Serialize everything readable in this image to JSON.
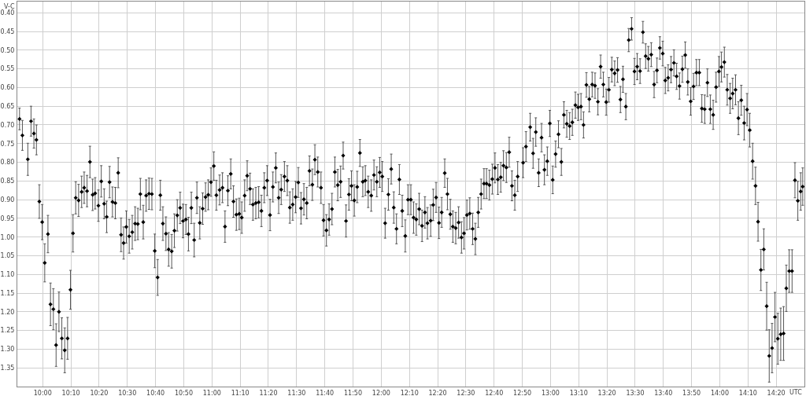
{
  "chart_data": {
    "type": "scatter",
    "xlabel": "UTC",
    "ylabel": "V-C",
    "xlim": [
      9.85,
      14.5
    ],
    "ylim": [
      1.4,
      0.37
    ],
    "xticks": [
      {
        "value": 10,
        "label": "10:00"
      },
      {
        "value": 10.1667,
        "label": "10:10"
      },
      {
        "value": 10.3333,
        "label": "10:20"
      },
      {
        "value": 10.5,
        "label": "10:30"
      },
      {
        "value": 10.6667,
        "label": "10:40"
      },
      {
        "value": 10.8333,
        "label": "10:50"
      },
      {
        "value": 11,
        "label": "11:00"
      },
      {
        "value": 11.1667,
        "label": "11:10"
      },
      {
        "value": 11.3333,
        "label": "11:20"
      },
      {
        "value": 11.5,
        "label": "11:30"
      },
      {
        "value": 11.6667,
        "label": "11:40"
      },
      {
        "value": 11.8333,
        "label": "11:50"
      },
      {
        "value": 12,
        "label": "12:00"
      },
      {
        "value": 12.1667,
        "label": "12:10"
      },
      {
        "value": 12.3333,
        "label": "12:20"
      },
      {
        "value": 12.5,
        "label": "12:30"
      },
      {
        "value": 12.6667,
        "label": "12:40"
      },
      {
        "value": 12.8333,
        "label": "12:50"
      },
      {
        "value": 13,
        "label": "13:00"
      },
      {
        "value": 13.1667,
        "label": "13:10"
      },
      {
        "value": 13.3333,
        "label": "13:20"
      },
      {
        "value": 13.5,
        "label": "13:30"
      },
      {
        "value": 13.6667,
        "label": "13:40"
      },
      {
        "value": 13.8333,
        "label": "13:50"
      },
      {
        "value": 14,
        "label": "14:00"
      },
      {
        "value": 14.1667,
        "label": "14:10"
      },
      {
        "value": 14.3333,
        "label": "14:20"
      }
    ],
    "yticks": [
      {
        "value": 0.4,
        "label": "0.40"
      },
      {
        "value": 0.45,
        "label": "0.45"
      },
      {
        "value": 0.5,
        "label": "0.50"
      },
      {
        "value": 0.55,
        "label": "0.55"
      },
      {
        "value": 0.6,
        "label": "0.60"
      },
      {
        "value": 0.65,
        "label": "0.65"
      },
      {
        "value": 0.7,
        "label": "0.70"
      },
      {
        "value": 0.75,
        "label": "0.75"
      },
      {
        "value": 0.8,
        "label": "0.80"
      },
      {
        "value": 0.85,
        "label": "0.85"
      },
      {
        "value": 0.9,
        "label": "0.90"
      },
      {
        "value": 0.95,
        "label": "0.95"
      },
      {
        "value": 1.0,
        "label": "1.00"
      },
      {
        "value": 1.05,
        "label": "1.05"
      },
      {
        "value": 1.1,
        "label": "1.10"
      },
      {
        "value": 1.15,
        "label": "1.15"
      },
      {
        "value": 1.2,
        "label": "1.20"
      },
      {
        "value": 1.25,
        "label": "1.25"
      },
      {
        "value": 1.3,
        "label": "1.30"
      },
      {
        "value": 1.35,
        "label": "1.35"
      }
    ],
    "grid": true,
    "marker": "diamond",
    "series": [
      {
        "color": "#000000",
        "x": [
          9.863,
          9.88,
          9.912,
          9.931,
          9.948,
          9.963,
          9.98,
          9.997,
          10.012,
          10.031,
          10.046,
          10.063,
          10.079,
          10.096,
          10.113,
          10.13,
          10.147,
          10.164,
          10.179,
          10.195,
          10.212,
          10.23,
          10.245,
          10.262,
          10.279,
          10.295,
          10.31,
          10.329,
          10.346,
          10.363,
          10.378,
          10.395,
          10.412,
          10.429,
          10.446,
          10.463,
          10.478,
          10.494,
          10.511,
          10.529,
          10.546,
          10.562,
          10.577,
          10.594,
          10.611,
          10.628,
          10.645,
          10.662,
          10.679,
          10.695,
          10.71,
          10.728,
          10.744,
          10.762,
          10.778,
          10.795,
          10.812,
          10.829,
          10.846,
          10.861,
          10.878,
          10.895,
          10.911,
          10.928,
          10.945,
          10.962,
          10.978,
          10.994,
          11.011,
          11.026,
          11.045,
          11.062,
          11.077,
          11.094,
          11.111,
          11.127,
          11.144,
          11.161,
          11.176,
          11.193,
          11.208,
          11.225,
          11.242,
          11.259,
          11.276,
          11.292,
          11.309,
          11.326,
          11.343,
          11.36,
          11.377,
          11.394,
          11.409,
          11.428,
          11.445,
          11.46,
          11.477,
          11.494,
          11.51,
          11.526,
          11.543,
          11.56,
          11.576,
          11.593,
          11.608,
          11.625,
          11.644,
          11.659,
          11.676,
          11.692,
          11.709,
          11.726,
          11.743,
          11.76,
          11.775,
          11.792,
          11.809,
          11.824,
          11.841,
          11.858,
          11.874,
          11.891,
          11.906,
          11.923,
          11.941,
          11.957,
          11.974,
          11.991,
          12.006,
          12.023,
          12.042,
          12.059,
          12.074,
          12.09,
          12.107,
          12.124,
          12.142,
          12.158,
          12.175,
          12.191,
          12.207,
          12.224,
          12.241,
          12.258,
          12.273,
          12.292,
          12.307,
          12.324,
          12.341,
          12.357,
          12.375,
          12.391,
          12.408,
          12.423,
          12.44,
          12.457,
          12.474,
          12.489,
          12.506,
          12.523,
          12.54,
          12.556,
          12.573,
          12.59,
          12.607,
          12.622,
          12.639,
          12.656,
          12.672,
          12.689,
          12.706,
          12.722,
          12.739,
          12.756,
          12.772,
          12.789,
          12.806,
          12.838,
          12.855,
          12.88,
          12.897,
          12.913,
          12.93,
          12.947,
          12.964,
          12.981,
          12.996,
          13.013,
          13.03,
          13.047,
          13.064,
          13.079,
          13.096,
          13.113,
          13.129,
          13.147,
          13.163,
          13.18,
          13.195,
          13.212,
          13.229,
          13.246,
          13.263,
          13.28,
          13.296,
          13.312,
          13.329,
          13.345,
          13.362,
          13.379,
          13.396,
          13.413,
          13.428,
          13.445,
          13.462,
          13.479,
          13.496,
          13.512,
          13.529,
          13.546,
          13.562,
          13.578,
          13.595,
          13.612,
          13.629,
          13.646,
          13.663,
          13.678,
          13.695,
          13.712,
          13.729,
          13.745,
          13.762,
          13.779,
          13.796,
          13.811,
          13.828,
          13.845,
          13.862,
          13.879,
          13.894,
          13.911,
          13.927,
          13.944,
          13.961,
          13.978,
          13.995,
          14.01,
          14.027,
          14.044,
          14.061,
          14.076,
          14.093,
          14.11,
          14.127,
          14.144,
          14.161,
          14.177,
          14.194,
          14.211,
          14.226,
          14.243,
          14.26,
          14.277,
          14.292,
          14.309,
          14.326,
          14.343,
          14.36,
          14.377,
          14.393,
          14.41,
          14.427,
          14.444,
          14.461,
          14.478,
          14.49
        ],
        "values": [
          0.684,
          0.728,
          0.792,
          0.69,
          0.723,
          0.74,
          0.905,
          0.96,
          1.069,
          0.992,
          1.18,
          1.193,
          1.289,
          1.2,
          1.271,
          1.303,
          1.271,
          1.141,
          0.99,
          0.895,
          0.902,
          0.879,
          0.868,
          0.877,
          0.799,
          0.887,
          0.883,
          0.916,
          0.851,
          0.911,
          0.946,
          0.853,
          0.906,
          0.909,
          0.828,
          0.994,
          1.016,
          0.973,
          0.998,
          0.987,
          0.964,
          0.965,
          0.885,
          0.96,
          0.889,
          0.884,
          0.885,
          1.037,
          1.108,
          0.888,
          0.964,
          0.991,
          1.033,
          1.038,
          0.983,
          0.942,
          0.922,
          0.957,
          0.953,
          0.992,
          0.922,
          1.008,
          0.895,
          0.962,
          0.924,
          0.893,
          0.887,
          0.853,
          0.81,
          0.888,
          0.874,
          0.868,
          0.972,
          0.876,
          0.831,
          0.905,
          0.94,
          0.938,
          0.948,
          0.889,
          0.836,
          0.871,
          0.913,
          0.909,
          0.907,
          0.93,
          0.868,
          0.849,
          0.941,
          0.866,
          0.815,
          0.895,
          0.873,
          0.838,
          0.849,
          0.921,
          0.913,
          0.893,
          0.854,
          0.923,
          0.899,
          0.909,
          0.823,
          0.86,
          0.793,
          0.826,
          0.868,
          0.955,
          0.982,
          0.953,
          0.925,
          0.826,
          0.861,
          0.852,
          0.782,
          0.957,
          0.886,
          0.863,
          0.902,
          0.866,
          0.775,
          0.852,
          0.849,
          0.879,
          0.889,
          0.834,
          0.852,
          0.827,
          0.838,
          0.963,
          0.886,
          0.818,
          0.921,
          0.978,
          0.846,
          0.93,
          0.997,
          0.9,
          0.9,
          0.948,
          0.953,
          0.925,
          0.97,
          0.934,
          0.963,
          0.956,
          0.914,
          0.894,
          0.962,
          0.934,
          0.829,
          0.885,
          0.939,
          0.972,
          0.976,
          0.961,
          1.001,
          0.99,
          0.941,
          0.937,
          0.978,
          1.005,
          0.934,
          0.885,
          0.857,
          0.857,
          0.861,
          0.845,
          0.815,
          0.846,
          0.84,
          0.809,
          0.814,
          0.773,
          0.863,
          0.888,
          0.838,
          0.801,
          0.758,
          0.706,
          0.776,
          0.719,
          0.828,
          0.734,
          0.82,
          0.797,
          0.696,
          0.847,
          0.778,
          0.725,
          0.799,
          0.673,
          0.697,
          0.703,
          0.693,
          0.647,
          0.653,
          0.651,
          0.7,
          0.593,
          0.631,
          0.592,
          0.595,
          0.638,
          0.544,
          0.592,
          0.639,
          0.606,
          0.552,
          0.562,
          0.553,
          0.632,
          0.578,
          0.651,
          0.473,
          0.443,
          0.557,
          0.544,
          0.556,
          0.452,
          0.516,
          0.523,
          0.512,
          0.592,
          0.554,
          0.494,
          0.509,
          0.581,
          0.574,
          0.552,
          0.534,
          0.57,
          0.596,
          0.551,
          0.513,
          0.585,
          0.637,
          0.597,
          0.56,
          0.56,
          0.656,
          0.658,
          0.587,
          0.658,
          0.673,
          0.599,
          0.557,
          0.545,
          0.532,
          0.606,
          0.629,
          0.616,
          0.606,
          0.682,
          0.634,
          0.695,
          0.659,
          0.714,
          0.797,
          0.863,
          0.959,
          1.088,
          1.033,
          1.185,
          1.318,
          1.297,
          1.214,
          1.272,
          1.26,
          1.258,
          1.137,
          1.091,
          1.091,
          0.848,
          0.903,
          0.878,
          0.865
        ],
        "errors": [
          0.029,
          0.04,
          0.043,
          0.04,
          0.039,
          0.04,
          0.045,
          0.047,
          0.051,
          0.05,
          0.057,
          0.055,
          0.057,
          0.053,
          0.055,
          0.06,
          0.056,
          0.052,
          0.05,
          0.043,
          0.043,
          0.042,
          0.042,
          0.042,
          0.042,
          0.042,
          0.042,
          0.042,
          0.042,
          0.04,
          0.042,
          0.042,
          0.04,
          0.042,
          0.04,
          0.045,
          0.043,
          0.043,
          0.045,
          0.045,
          0.045,
          0.042,
          0.042,
          0.045,
          0.042,
          0.042,
          0.042,
          0.045,
          0.048,
          0.04,
          0.045,
          0.045,
          0.045,
          0.045,
          0.045,
          0.042,
          0.042,
          0.045,
          0.04,
          0.045,
          0.042,
          0.045,
          0.042,
          0.043,
          0.042,
          0.038,
          0.04,
          0.038,
          0.038,
          0.04,
          0.04,
          0.04,
          0.042,
          0.04,
          0.04,
          0.042,
          0.042,
          0.042,
          0.042,
          0.042,
          0.04,
          0.042,
          0.042,
          0.042,
          0.042,
          0.042,
          0.04,
          0.04,
          0.042,
          0.04,
          0.04,
          0.042,
          0.04,
          0.04,
          0.04,
          0.042,
          0.042,
          0.042,
          0.04,
          0.042,
          0.042,
          0.042,
          0.04,
          0.042,
          0.04,
          0.04,
          0.042,
          0.042,
          0.042,
          0.042,
          0.042,
          0.04,
          0.042,
          0.042,
          0.036,
          0.043,
          0.042,
          0.04,
          0.042,
          0.042,
          0.036,
          0.04,
          0.04,
          0.042,
          0.042,
          0.04,
          0.04,
          0.04,
          0.04,
          0.04,
          0.042,
          0.04,
          0.042,
          0.04,
          0.04,
          0.042,
          0.043,
          0.04,
          0.04,
          0.042,
          0.042,
          0.042,
          0.042,
          0.042,
          0.042,
          0.042,
          0.042,
          0.04,
          0.042,
          0.04,
          0.038,
          0.042,
          0.04,
          0.042,
          0.042,
          0.042,
          0.042,
          0.042,
          0.04,
          0.042,
          0.042,
          0.042,
          0.04,
          0.04,
          0.04,
          0.04,
          0.04,
          0.04,
          0.04,
          0.04,
          0.04,
          0.04,
          0.04,
          0.04,
          0.04,
          0.04,
          0.04,
          0.04,
          0.04,
          0.037,
          0.04,
          0.038,
          0.037,
          0.038,
          0.04,
          0.038,
          0.035,
          0.037,
          0.035,
          0.036,
          0.036,
          0.035,
          0.036,
          0.036,
          0.035,
          0.035,
          0.035,
          0.035,
          0.035,
          0.033,
          0.034,
          0.033,
          0.034,
          0.035,
          0.031,
          0.033,
          0.035,
          0.033,
          0.033,
          0.033,
          0.033,
          0.035,
          0.035,
          0.035,
          0.031,
          0.03,
          0.035,
          0.035,
          0.033,
          0.029,
          0.033,
          0.033,
          0.032,
          0.035,
          0.033,
          0.03,
          0.033,
          0.035,
          0.035,
          0.035,
          0.035,
          0.035,
          0.035,
          0.035,
          0.035,
          0.035,
          0.037,
          0.035,
          0.035,
          0.035,
          0.037,
          0.038,
          0.037,
          0.038,
          0.039,
          0.04,
          0.04,
          0.04,
          0.04,
          0.041,
          0.04,
          0.041,
          0.04,
          0.044,
          0.04,
          0.045,
          0.043,
          0.045,
          0.048,
          0.05,
          0.052,
          0.055,
          0.055,
          0.064,
          0.07,
          0.066,
          0.066,
          0.068,
          0.07,
          0.072,
          0.062,
          0.057,
          0.057,
          0.047,
          0.052,
          0.05,
          0.05
        ]
      }
    ]
  }
}
